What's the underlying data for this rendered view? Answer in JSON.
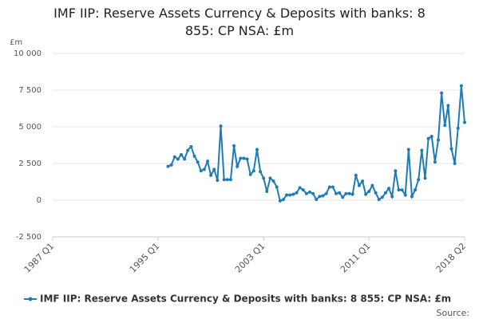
{
  "chart_data": {
    "type": "line",
    "title": "IMF IIP: Reserve Assets Currency & Deposits with banks: 8 855: CP NSA: £m",
    "y_label": "£m",
    "source": "Source:",
    "categories": [
      "1987 Q1",
      null,
      null,
      null,
      null,
      null,
      null,
      null,
      null,
      null,
      null,
      null,
      null,
      null,
      null,
      null,
      null,
      null,
      null,
      null,
      null,
      null,
      null,
      null,
      null,
      null,
      null,
      null,
      null,
      null,
      null,
      null,
      "1995 Q1",
      null,
      null,
      null,
      null,
      null,
      null,
      null,
      null,
      null,
      null,
      null,
      null,
      null,
      null,
      null,
      null,
      null,
      null,
      null,
      null,
      null,
      null,
      null,
      null,
      null,
      null,
      null,
      null,
      null,
      null,
      null,
      "2003 Q1",
      null,
      null,
      null,
      null,
      null,
      null,
      null,
      null,
      null,
      null,
      null,
      null,
      null,
      null,
      null,
      null,
      null,
      null,
      null,
      null,
      null,
      null,
      null,
      null,
      null,
      null,
      null,
      null,
      null,
      null,
      null,
      "2011 Q1",
      null,
      null,
      null,
      null,
      null,
      null,
      null,
      null,
      null,
      null,
      null,
      null,
      null,
      null,
      null,
      null,
      null,
      null,
      null,
      null,
      null,
      null,
      null,
      null,
      null,
      null,
      null,
      null,
      "2018 Q2"
    ],
    "series": [
      {
        "name": "IMF IIP: Reserve Assets Currency & Deposits with banks: 8 855: CP NSA: £m",
        "color": "#1f7bb6",
        "values": [
          null,
          null,
          null,
          null,
          null,
          null,
          null,
          null,
          null,
          null,
          null,
          null,
          null,
          null,
          null,
          null,
          null,
          null,
          null,
          null,
          null,
          null,
          null,
          null,
          null,
          null,
          null,
          null,
          null,
          null,
          null,
          null,
          null,
          null,
          null,
          2300,
          2400,
          2950,
          2800,
          3100,
          2800,
          3400,
          3650,
          3000,
          2600,
          2000,
          2100,
          2650,
          1700,
          2100,
          1350,
          5050,
          1400,
          1400,
          1400,
          3700,
          2300,
          2850,
          2850,
          2800,
          1750,
          2000,
          3450,
          1950,
          1500,
          600,
          1500,
          1300,
          900,
          -50,
          50,
          350,
          350,
          400,
          500,
          850,
          700,
          450,
          550,
          450,
          50,
          250,
          300,
          450,
          900,
          900,
          450,
          500,
          200,
          450,
          450,
          400,
          1700,
          1000,
          1300,
          400,
          600,
          1000,
          500,
          50,
          200,
          500,
          800,
          250,
          2000,
          700,
          700,
          350,
          3450,
          250,
          700,
          1400,
          3400,
          1500,
          4200,
          4350,
          2600,
          4100,
          7300,
          5100,
          6450,
          3500,
          2500,
          4900,
          7800,
          5300
        ]
      }
    ],
    "ylim": [
      -2500,
      10000
    ],
    "yticks": [
      {
        "value": -2500,
        "label": "-2 500"
      },
      0,
      {
        "value": 2500,
        "label": "2 500"
      },
      {
        "value": 5000,
        "label": "5 000"
      },
      {
        "value": 7500,
        "label": "7 500"
      },
      {
        "value": 10000,
        "label": "10 000"
      }
    ],
    "grid": true,
    "legend": "bottom"
  }
}
